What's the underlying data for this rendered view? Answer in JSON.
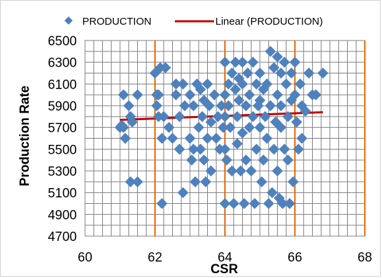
{
  "chart_data": {
    "type": "scatter",
    "title": "",
    "xlabel": "CSR",
    "ylabel": "Production Rate",
    "xlim": [
      60,
      68
    ],
    "ylim": [
      4700,
      6500
    ],
    "x_ticks": [
      60,
      62,
      64,
      66,
      68
    ],
    "y_ticks": [
      4700,
      4900,
      5100,
      5300,
      5500,
      5700,
      5900,
      6100,
      6300,
      6500
    ],
    "x_tick_labels": [
      "60",
      "62",
      "64",
      "66",
      "68"
    ],
    "y_tick_labels": [
      "4700",
      "4900",
      "5100",
      "5300",
      "5500",
      "5700",
      "5900",
      "6100",
      "6300",
      "6500"
    ],
    "grid": true,
    "legend_position": "top",
    "series": [
      {
        "name": "PRODUCTION",
        "kind": "scatter",
        "marker": "diamond",
        "color": "#4f81bd",
        "points": [
          [
            61.0,
            5700
          ],
          [
            61.05,
            5720
          ],
          [
            61.1,
            5700
          ],
          [
            61.1,
            6000
          ],
          [
            61.15,
            5600
          ],
          [
            61.25,
            5900
          ],
          [
            61.3,
            5200
          ],
          [
            61.3,
            5800
          ],
          [
            61.35,
            5750
          ],
          [
            61.5,
            5200
          ],
          [
            61.5,
            6000
          ],
          [
            62.0,
            6200
          ],
          [
            62.05,
            5900
          ],
          [
            62.05,
            6000
          ],
          [
            62.1,
            5800
          ],
          [
            62.1,
            6000
          ],
          [
            62.15,
            6250
          ],
          [
            62.2,
            5600
          ],
          [
            62.2,
            5000
          ],
          [
            62.25,
            5800
          ],
          [
            62.3,
            6250
          ],
          [
            62.4,
            5700
          ],
          [
            62.5,
            5600
          ],
          [
            62.6,
            6100
          ],
          [
            62.6,
            6000
          ],
          [
            62.7,
            5800
          ],
          [
            62.7,
            5500
          ],
          [
            62.8,
            5100
          ],
          [
            62.8,
            6100
          ],
          [
            62.85,
            5900
          ],
          [
            63.0,
            6000
          ],
          [
            63.0,
            5600
          ],
          [
            63.05,
            5400
          ],
          [
            63.1,
            5900
          ],
          [
            63.1,
            5500
          ],
          [
            63.15,
            5200
          ],
          [
            63.2,
            6100
          ],
          [
            63.25,
            5700
          ],
          [
            63.3,
            6050
          ],
          [
            63.3,
            5500
          ],
          [
            63.35,
            5800
          ],
          [
            63.4,
            5950
          ],
          [
            63.4,
            5400
          ],
          [
            63.45,
            5200
          ],
          [
            63.5,
            6100
          ],
          [
            63.5,
            5600
          ],
          [
            63.55,
            5900
          ],
          [
            63.6,
            5750
          ],
          [
            63.6,
            5300
          ],
          [
            63.7,
            6000
          ],
          [
            63.75,
            5600
          ],
          [
            63.8,
            5800
          ],
          [
            63.85,
            5500
          ],
          [
            63.9,
            5900
          ],
          [
            63.95,
            5700
          ],
          [
            64.0,
            6300
          ],
          [
            64.0,
            6000
          ],
          [
            64.0,
            5800
          ],
          [
            64.0,
            5500
          ],
          [
            64.0,
            5000
          ],
          [
            64.05,
            5400
          ],
          [
            64.1,
            6100
          ],
          [
            64.1,
            5900
          ],
          [
            64.15,
            5700
          ],
          [
            64.2,
            6200
          ],
          [
            64.2,
            5300
          ],
          [
            64.25,
            5000
          ],
          [
            64.3,
            6300
          ],
          [
            64.3,
            6050
          ],
          [
            64.35,
            5800
          ],
          [
            64.35,
            5550
          ],
          [
            64.4,
            6150
          ],
          [
            64.4,
            5950
          ],
          [
            64.45,
            5300
          ],
          [
            64.5,
            6300
          ],
          [
            64.5,
            6100
          ],
          [
            64.5,
            5650
          ],
          [
            64.55,
            5000
          ],
          [
            64.6,
            5900
          ],
          [
            64.6,
            5400
          ],
          [
            64.65,
            6200
          ],
          [
            64.7,
            6000
          ],
          [
            64.7,
            5700
          ],
          [
            64.75,
            5300
          ],
          [
            64.8,
            6300
          ],
          [
            64.8,
            5800
          ],
          [
            64.85,
            5000
          ],
          [
            64.9,
            6100
          ],
          [
            64.9,
            5500
          ],
          [
            64.95,
            5900
          ],
          [
            65.0,
            6200
          ],
          [
            65.0,
            5950
          ],
          [
            65.0,
            5700
          ],
          [
            65.05,
            5200
          ],
          [
            65.1,
            6050
          ],
          [
            65.1,
            5400
          ],
          [
            65.15,
            5800
          ],
          [
            65.2,
            6100
          ],
          [
            65.2,
            5600
          ],
          [
            65.25,
            5000
          ],
          [
            65.3,
            6400
          ],
          [
            65.3,
            5900
          ],
          [
            65.35,
            5100
          ],
          [
            65.4,
            6250
          ],
          [
            65.4,
            5500
          ],
          [
            65.45,
            5750
          ],
          [
            65.5,
            6350
          ],
          [
            65.5,
            6000
          ],
          [
            65.5,
            5300
          ],
          [
            65.55,
            5050
          ],
          [
            65.6,
            6200
          ],
          [
            65.6,
            5900
          ],
          [
            65.6,
            5700
          ],
          [
            65.65,
            5000
          ],
          [
            65.7,
            6300
          ],
          [
            65.7,
            5500
          ],
          [
            65.75,
            6100
          ],
          [
            65.8,
            5800
          ],
          [
            65.8,
            5400
          ],
          [
            65.85,
            5000
          ],
          [
            65.9,
            6200
          ],
          [
            65.9,
            5950
          ],
          [
            65.95,
            5200
          ],
          [
            66.0,
            6300
          ],
          [
            66.0,
            6000
          ],
          [
            66.05,
            5750
          ],
          [
            66.1,
            5500
          ],
          [
            66.15,
            6100
          ],
          [
            66.2,
            5900
          ],
          [
            66.2,
            5600
          ],
          [
            66.3,
            5850
          ],
          [
            66.4,
            6200
          ],
          [
            66.5,
            6000
          ],
          [
            66.6,
            6000
          ],
          [
            66.8,
            6200
          ]
        ]
      },
      {
        "name": "Linear (PRODUCTION)",
        "kind": "line",
        "color": "#c00000",
        "points": [
          [
            61.0,
            5770
          ],
          [
            66.8,
            5840
          ]
        ]
      }
    ]
  }
}
